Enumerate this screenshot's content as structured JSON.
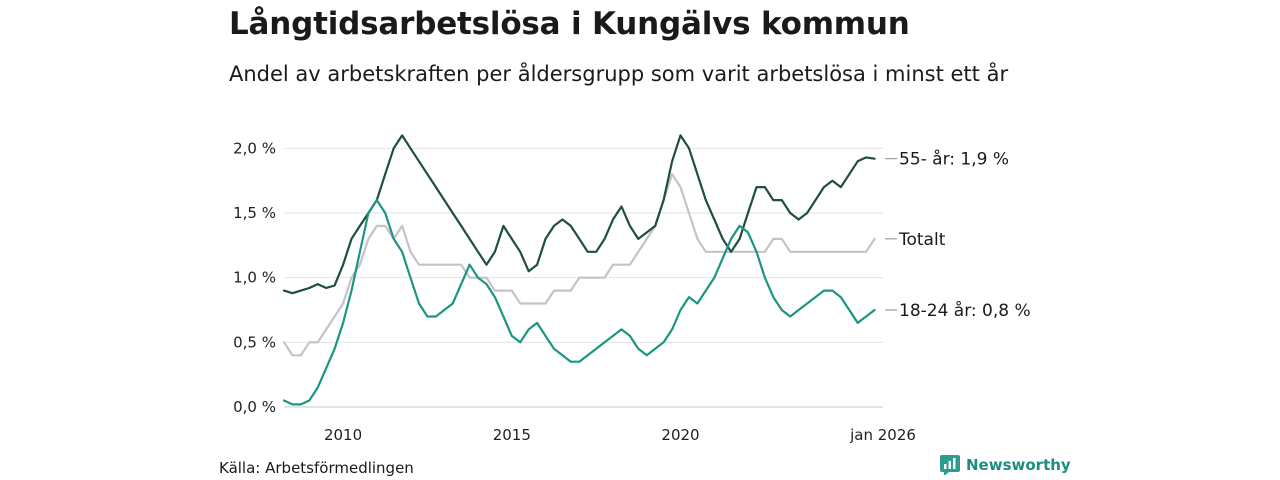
{
  "title": "Långtidsarbetslösa i Kungälvs kommun",
  "subtitle": "Andel av arbetskraften per åldersgrupp som varit arbetslösa i minst ett år",
  "source": "Källa: Arbetsförmedlingen",
  "brand": {
    "name": "Newsworthy",
    "icon": "newsworthy-logo-icon",
    "color": "#2a9d8f"
  },
  "chart_data": {
    "type": "line",
    "x_start": 2008.25,
    "x_step": 0.25,
    "xlim": [
      2008.25,
      2026.0
    ],
    "ylim": [
      0,
      2.25
    ],
    "xticks": [
      {
        "value": 2010,
        "label": "2010"
      },
      {
        "value": 2015,
        "label": "2015"
      },
      {
        "value": 2020,
        "label": "2020"
      },
      {
        "value": 2026.0,
        "label": "jan 2026"
      }
    ],
    "yticks": [
      {
        "value": 0.0,
        "label": "0,0 %"
      },
      {
        "value": 0.5,
        "label": "0,5 %"
      },
      {
        "value": 1.0,
        "label": "1,0 %"
      },
      {
        "value": 1.5,
        "label": "1,5 %"
      },
      {
        "value": 2.0,
        "label": "2,0 %"
      }
    ],
    "grid": true,
    "series": [
      {
        "name": "Totalt",
        "end_label": "Totalt",
        "color": "#c4c4c8",
        "values": [
          0.5,
          0.4,
          0.4,
          0.5,
          0.5,
          0.6,
          0.7,
          0.8,
          1.0,
          1.1,
          1.3,
          1.4,
          1.4,
          1.3,
          1.4,
          1.2,
          1.1,
          1.1,
          1.1,
          1.1,
          1.1,
          1.1,
          1.0,
          1.0,
          1.0,
          0.9,
          0.9,
          0.9,
          0.8,
          0.8,
          0.8,
          0.8,
          0.9,
          0.9,
          0.9,
          1.0,
          1.0,
          1.0,
          1.0,
          1.1,
          1.1,
          1.1,
          1.2,
          1.3,
          1.4,
          1.6,
          1.8,
          1.7,
          1.5,
          1.3,
          1.2,
          1.2,
          1.2,
          1.2,
          1.2,
          1.2,
          1.2,
          1.2,
          1.3,
          1.3,
          1.2,
          1.2,
          1.2,
          1.2,
          1.2,
          1.2,
          1.2,
          1.2,
          1.2,
          1.2,
          1.3
        ]
      },
      {
        "name": "55- år",
        "end_label": "55- år: 1,9 %",
        "color": "#1f4f3e",
        "values": [
          0.9,
          0.88,
          0.9,
          0.92,
          0.95,
          0.92,
          0.94,
          1.1,
          1.3,
          1.4,
          1.5,
          1.6,
          1.8,
          2.0,
          2.1,
          2.0,
          1.9,
          1.8,
          1.7,
          1.6,
          1.5,
          1.4,
          1.3,
          1.2,
          1.1,
          1.2,
          1.4,
          1.3,
          1.2,
          1.05,
          1.1,
          1.3,
          1.4,
          1.45,
          1.4,
          1.3,
          1.2,
          1.2,
          1.3,
          1.45,
          1.55,
          1.4,
          1.3,
          1.35,
          1.4,
          1.6,
          1.9,
          2.1,
          2.0,
          1.8,
          1.6,
          1.45,
          1.3,
          1.2,
          1.3,
          1.5,
          1.7,
          1.7,
          1.6,
          1.6,
          1.5,
          1.45,
          1.5,
          1.6,
          1.7,
          1.75,
          1.7,
          1.8,
          1.9,
          1.93,
          1.92
        ]
      },
      {
        "name": "18-24 år",
        "end_label": "18-24 år: 0,8 %",
        "color": "#1a9683",
        "values": [
          0.05,
          0.02,
          0.02,
          0.05,
          0.15,
          0.3,
          0.45,
          0.65,
          0.9,
          1.2,
          1.5,
          1.6,
          1.5,
          1.3,
          1.2,
          1.0,
          0.8,
          0.7,
          0.7,
          0.75,
          0.8,
          0.95,
          1.1,
          1.0,
          0.95,
          0.85,
          0.7,
          0.55,
          0.5,
          0.6,
          0.65,
          0.55,
          0.45,
          0.4,
          0.35,
          0.35,
          0.4,
          0.45,
          0.5,
          0.55,
          0.6,
          0.55,
          0.45,
          0.4,
          0.45,
          0.5,
          0.6,
          0.75,
          0.85,
          0.8,
          0.9,
          1.0,
          1.15,
          1.3,
          1.4,
          1.35,
          1.2,
          1.0,
          0.85,
          0.75,
          0.7,
          0.75,
          0.8,
          0.85,
          0.9,
          0.9,
          0.85,
          0.75,
          0.65,
          0.7,
          0.75
        ]
      }
    ]
  }
}
